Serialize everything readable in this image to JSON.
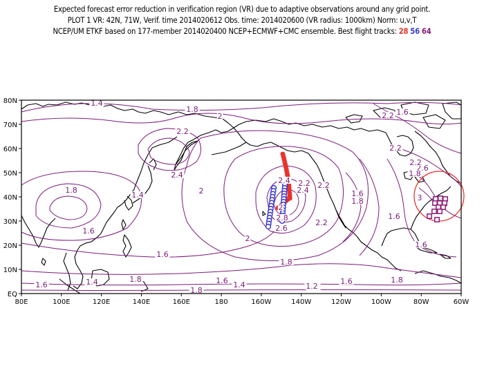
{
  "header": {
    "line1": "Expected forecast error reduction in verification region (VR) due to adaptive observations around any grid point.",
    "line2": "PLOT 1 VR: 42N, 71W, Verif. time 2014020612 Obs. time: 2014020600 (VR radius: 1000km) Norm: u,v,T",
    "line3_text": "NCEP/UM ETKF based on 177-member 2014020400 NCEP+ECMWF+CMC ensemble. Best flight tracks:",
    "tracks": [
      {
        "label": "28",
        "color": "#e8342c"
      },
      {
        "label": "56",
        "color": "#3a3ad8"
      },
      {
        "label": "64",
        "color": "#8a1a7a"
      }
    ]
  },
  "map": {
    "x_ticks": [
      "80E",
      "100E",
      "120E",
      "140E",
      "160E",
      "180",
      "160W",
      "140W",
      "120W",
      "100W",
      "80W",
      "60W"
    ],
    "y_ticks": [
      "EQ",
      "10N",
      "20N",
      "30N",
      "40N",
      "50N",
      "60N",
      "70N",
      "80N"
    ],
    "contour_color": "#7a1a7a",
    "contour_labels": [
      "1.4",
      "1.8",
      "2",
      "2.2",
      "2.4",
      "1.8",
      "1.4",
      "1.6",
      "1.6",
      "1.8",
      "2",
      "1.6",
      "1.4",
      "1.8",
      "1.6",
      "1.4",
      "1.2",
      "2.2",
      "2",
      "2.4",
      "2.6",
      "2.8",
      "2.2",
      "2.4",
      "2.2",
      "2",
      "1.8",
      "1.6",
      "1.8",
      "1.6",
      "1.2",
      "1.6",
      "1.8",
      "2.2",
      "2.6",
      "1.6",
      "2.2",
      "1.8",
      "2.2",
      "1.6",
      "3"
    ]
  }
}
